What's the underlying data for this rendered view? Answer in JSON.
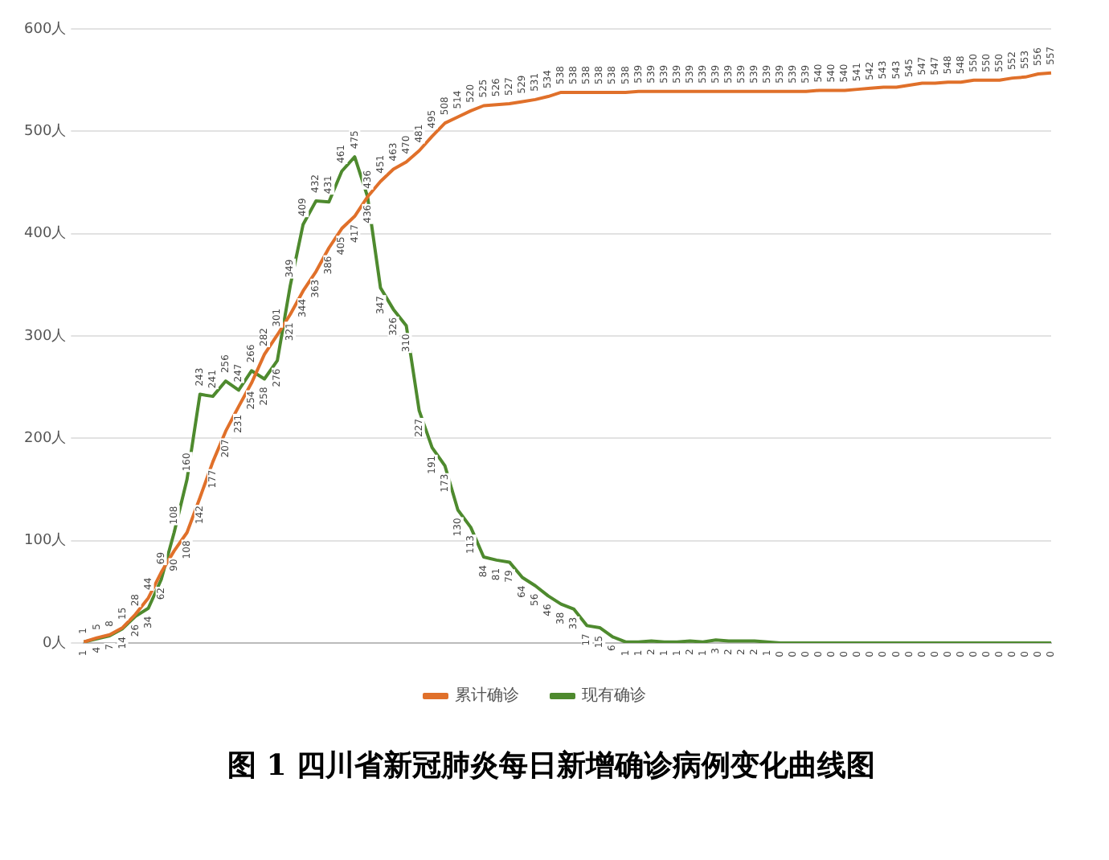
{
  "chart_data": {
    "type": "line",
    "title": "图 1 四川省新冠肺炎每日新增确诊病例变化曲线图",
    "categories": [
      null,
      null,
      null,
      null,
      null,
      null,
      null,
      null,
      null,
      null,
      null,
      null,
      null,
      null,
      null,
      null,
      null,
      null,
      null,
      null,
      null,
      null,
      null,
      null,
      null,
      null,
      null,
      null,
      null,
      null,
      null,
      null,
      null,
      null,
      null,
      null,
      null,
      null,
      null,
      null,
      null,
      null,
      null,
      null,
      null,
      null,
      null,
      null,
      null,
      null,
      null,
      null,
      null,
      null,
      null,
      null,
      null,
      null,
      null,
      null,
      null,
      null,
      null,
      null,
      null,
      null,
      null,
      null,
      null,
      null,
      null,
      null,
      null,
      null,
      null,
      null
    ],
    "series": [
      {
        "name": "累计确诊",
        "color": "#e0702a",
        "values": [
          1,
          5,
          8,
          15,
          28,
          44,
          69,
          90,
          108,
          142,
          177,
          207,
          231,
          254,
          282,
          301,
          321,
          344,
          363,
          386,
          405,
          417,
          436,
          451,
          463,
          470,
          481,
          495,
          508,
          514,
          520,
          525,
          526,
          527,
          529,
          531,
          534,
          538,
          538,
          538,
          538,
          538,
          538,
          539,
          539,
          539,
          539,
          539,
          539,
          539,
          539,
          539,
          539,
          539,
          539,
          539,
          539,
          540,
          540,
          540,
          541,
          542,
          543,
          543,
          545,
          547,
          547,
          548,
          548,
          550,
          550,
          550,
          552,
          553,
          556,
          557
        ]
      },
      {
        "name": "现有确诊",
        "color": "#4e8a2e",
        "values": [
          1,
          4,
          7,
          14,
          26,
          34,
          62,
          108,
          160,
          243,
          241,
          256,
          247,
          266,
          258,
          276,
          349,
          409,
          432,
          431,
          461,
          475,
          436,
          347,
          326,
          310,
          227,
          191,
          173,
          130,
          113,
          84,
          81,
          79,
          64,
          56,
          46,
          38,
          33,
          17,
          15,
          6,
          1,
          1,
          2,
          1,
          1,
          2,
          1,
          3,
          2,
          2,
          2,
          1,
          0,
          0,
          0,
          0,
          0,
          0,
          0,
          0,
          0,
          0,
          0,
          0,
          0,
          0,
          0,
          0,
          0,
          0,
          0,
          0,
          0,
          0
        ]
      }
    ],
    "ylim": [
      0,
      600
    ],
    "yticks": [
      {
        "value": 0,
        "label": "0人"
      },
      {
        "value": 100,
        "label": "100人"
      },
      {
        "value": 200,
        "label": "200人"
      },
      {
        "value": 300,
        "label": "300人"
      },
      {
        "value": 400,
        "label": "400人"
      },
      {
        "value": 500,
        "label": "500人"
      },
      {
        "value": 600,
        "label": "600人"
      }
    ],
    "grid": "y",
    "legend": "bottom",
    "marker": "none",
    "line_style": "solid",
    "data_labels": true
  }
}
